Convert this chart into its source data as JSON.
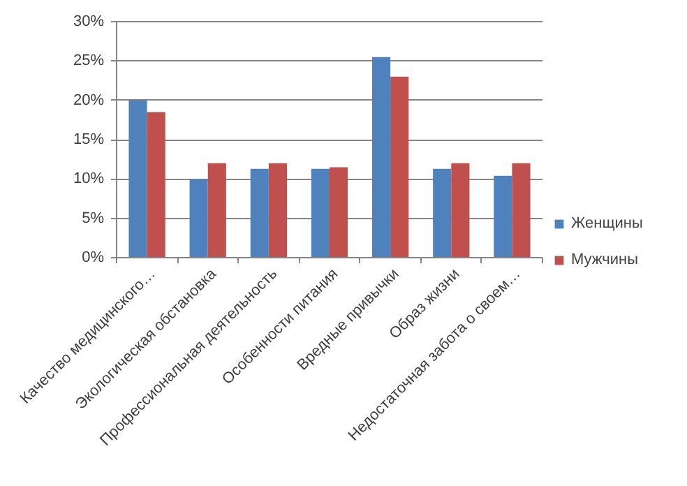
{
  "chart_data": {
    "type": "bar",
    "categories": [
      "Качество медицинского…",
      "Экологическая обстановка",
      "Профессиональная деятельность",
      "Особенности питания",
      "Вредные привычки",
      "Образ жизни",
      "Недостаточная забота о своем…"
    ],
    "series": [
      {
        "name": "Женщины",
        "color": "#4f81bd",
        "values": [
          20,
          10,
          11.3,
          11.3,
          25.5,
          11.3,
          10.4
        ]
      },
      {
        "name": "Мужчины",
        "color": "#c0504d",
        "values": [
          18.5,
          12,
          12,
          11.5,
          23,
          12,
          12
        ]
      }
    ],
    "ylim": [
      0,
      30
    ],
    "yticks": [
      {
        "value": 0,
        "label": "0%"
      },
      {
        "value": 5,
        "label": "5%"
      },
      {
        "value": 10,
        "label": "10%"
      },
      {
        "value": 15,
        "label": "15%"
      },
      {
        "value": 20,
        "label": "20%"
      },
      {
        "value": 25,
        "label": "25%"
      },
      {
        "value": 30,
        "label": "30%"
      }
    ],
    "grid": "y",
    "legend": "right"
  }
}
